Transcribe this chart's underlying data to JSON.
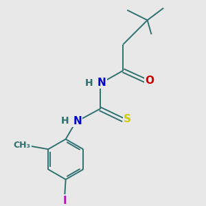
{
  "background_color": "#e8e8e8",
  "bond_color": "#2d7070",
  "atom_colors": {
    "N": "#0000cc",
    "O": "#cc0000",
    "S": "#cccc00",
    "I": "#cc00cc",
    "H": "#2d7070"
  },
  "figsize": [
    3.0,
    3.0
  ],
  "dpi": 100
}
